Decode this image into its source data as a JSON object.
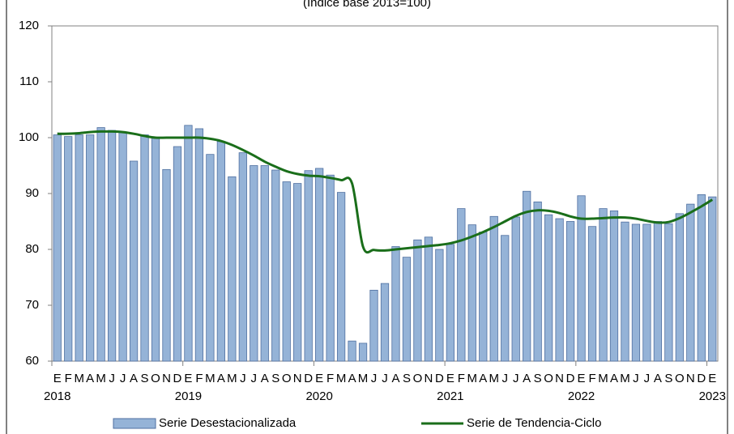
{
  "chart_data": {
    "type": "bar_line",
    "subtitle": "(Índice base 2013=100)",
    "categories": [
      "E",
      "F",
      "M",
      "A",
      "M",
      "J",
      "J",
      "A",
      "S",
      "O",
      "N",
      "D",
      "E",
      "F",
      "M",
      "A",
      "M",
      "J",
      "J",
      "A",
      "S",
      "O",
      "N",
      "D",
      "E",
      "F",
      "M",
      "A",
      "M",
      "J",
      "J",
      "A",
      "S",
      "O",
      "N",
      "D",
      "E",
      "F",
      "M",
      "A",
      "M",
      "J",
      "J",
      "A",
      "S",
      "O",
      "N",
      "D",
      "E",
      "F",
      "M",
      "A",
      "M",
      "J",
      "J",
      "A",
      "S",
      "O",
      "N",
      "D",
      "E"
    ],
    "years": [
      "2018",
      null,
      null,
      null,
      null,
      null,
      null,
      null,
      null,
      null,
      null,
      null,
      "2019",
      null,
      null,
      null,
      null,
      null,
      null,
      null,
      null,
      null,
      null,
      null,
      "2020",
      null,
      null,
      null,
      null,
      null,
      null,
      null,
      null,
      null,
      null,
      null,
      "2021",
      null,
      null,
      null,
      null,
      null,
      null,
      null,
      null,
      null,
      null,
      null,
      "2022",
      null,
      null,
      null,
      null,
      null,
      null,
      null,
      null,
      null,
      null,
      null,
      "2023"
    ],
    "series": [
      {
        "name": "Serie Desestacionalizada",
        "type": "bar",
        "color": "#95b3d7",
        "values": [
          100.5,
          100.2,
          100.5,
          100.5,
          101.8,
          101.3,
          101.0,
          95.8,
          100.5,
          100.0,
          94.3,
          98.4,
          102.2,
          101.6,
          97.0,
          99.3,
          93.0,
          97.3,
          95.0,
          95.0,
          94.2,
          92.1,
          91.8,
          94.1,
          94.5,
          93.3,
          90.2,
          63.6,
          63.2,
          72.7,
          73.9,
          80.5,
          78.6,
          81.7,
          82.2,
          80.0,
          80.9,
          87.3,
          84.4,
          83.1,
          85.9,
          82.5,
          85.8,
          90.4,
          88.5,
          86.2,
          85.5,
          85.0,
          89.6,
          84.1,
          87.3,
          86.9,
          84.9,
          84.5,
          84.5,
          85.0,
          84.6,
          86.4,
          88.1,
          89.8,
          89.4
        ]
      },
      {
        "name": "Serie de Tendencia-Ciclo",
        "type": "line",
        "color": "#1a6e1a",
        "values": [
          100.7,
          100.7,
          100.8,
          101.0,
          101.1,
          101.1,
          101.0,
          100.7,
          100.3,
          100.0,
          100.0,
          100.0,
          100.0,
          100.0,
          99.8,
          99.4,
          98.7,
          97.8,
          96.8,
          95.7,
          94.8,
          94.0,
          93.5,
          93.2,
          93.1,
          92.8,
          92.4,
          91.8,
          80.5,
          79.9,
          79.8,
          80.0,
          80.2,
          80.4,
          80.6,
          80.8,
          81.1,
          81.6,
          82.3,
          83.1,
          84.0,
          85.0,
          86.0,
          86.7,
          87.0,
          86.9,
          86.5,
          85.9,
          85.5,
          85.5,
          85.6,
          85.7,
          85.7,
          85.5,
          85.1,
          84.8,
          84.9,
          85.6,
          86.6,
          87.7,
          88.9
        ]
      }
    ],
    "ylim": [
      60,
      120
    ],
    "yticks": [
      60,
      70,
      80,
      90,
      100,
      110,
      120
    ]
  }
}
